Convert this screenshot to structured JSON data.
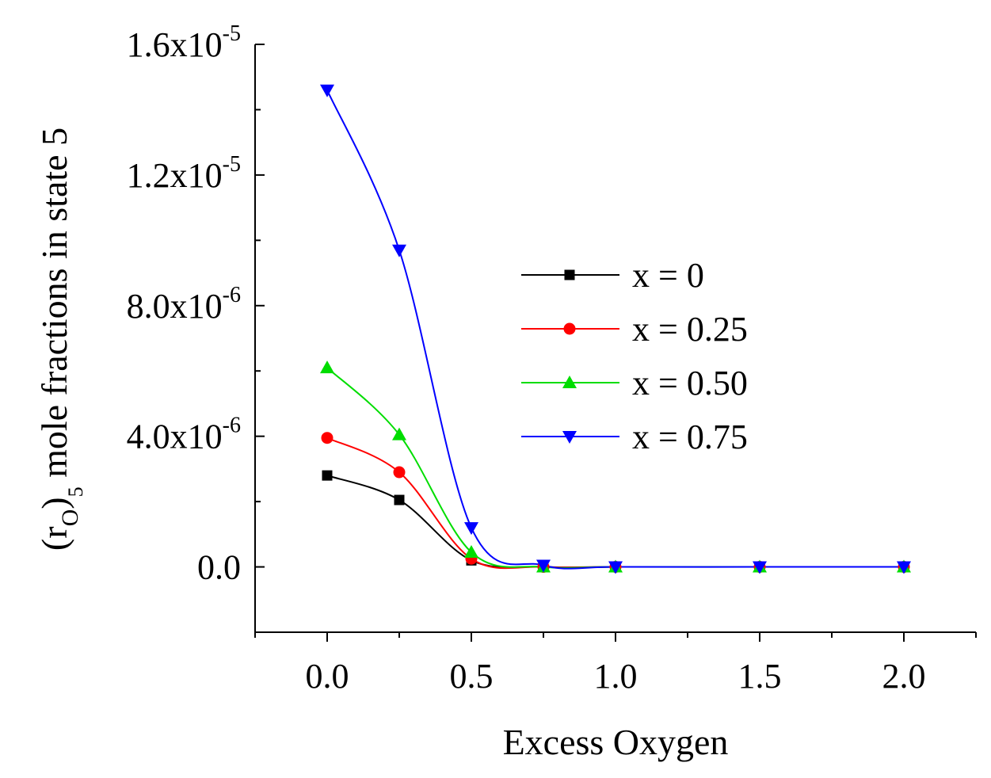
{
  "chart_data": {
    "type": "line",
    "title": "",
    "xlabel": "Excess Oxygen",
    "ylabel": {
      "prefix": "(r",
      "inner_sub": "O",
      "close": ")",
      "outer_sub": "5",
      "suffix": " mole fractions in state 5"
    },
    "xlim": [
      -0.25,
      2.25
    ],
    "ylim": [
      -2e-06,
      1.6e-05
    ],
    "x_ticks": [
      {
        "value": 0.0,
        "label": "0.0"
      },
      {
        "value": 0.5,
        "label": "0.5"
      },
      {
        "value": 1.0,
        "label": "1.0"
      },
      {
        "value": 1.5,
        "label": "1.5"
      },
      {
        "value": 2.0,
        "label": "2.0"
      }
    ],
    "x_minor_ticks": [
      -0.25,
      0.25,
      0.75,
      1.25,
      1.75,
      2.25
    ],
    "y_ticks": [
      {
        "value": 0.0,
        "mantissa": "0.0",
        "exponent": ""
      },
      {
        "value": 4e-06,
        "mantissa": "4.0x10",
        "exponent": "-6"
      },
      {
        "value": 8e-06,
        "mantissa": "8.0x10",
        "exponent": "-6"
      },
      {
        "value": 1.2e-05,
        "mantissa": "1.2x10",
        "exponent": "-5"
      },
      {
        "value": 1.6e-05,
        "mantissa": "1.6x10",
        "exponent": "-5"
      }
    ],
    "y_minor_ticks": [
      -2e-06,
      2e-06,
      6e-06,
      1e-05,
      1.4e-05
    ],
    "legend_position": "center-right",
    "series": [
      {
        "name": "x = 0",
        "color": "#000000",
        "marker": "square",
        "x": [
          0.0,
          0.25,
          0.5,
          0.75,
          1.0,
          1.5,
          2.0
        ],
        "y": [
          2.8e-06,
          2.05e-06,
          2e-07,
          0.0,
          0.0,
          0.0,
          0.0
        ]
      },
      {
        "name": "x = 0.25",
        "color": "#ff0000",
        "marker": "circle",
        "x": [
          0.0,
          0.25,
          0.5,
          0.75,
          1.0,
          1.5,
          2.0
        ],
        "y": [
          3.95e-06,
          2.9e-06,
          2.5e-07,
          0.0,
          0.0,
          0.0,
          0.0
        ]
      },
      {
        "name": "x = 0.50",
        "color": "#00dd00",
        "marker": "triangle-up",
        "x": [
          0.0,
          0.25,
          0.5,
          0.75,
          1.0,
          1.5,
          2.0
        ],
        "y": [
          6.1e-06,
          4.05e-06,
          4.5e-07,
          0.0,
          0.0,
          0.0,
          0.0
        ]
      },
      {
        "name": "x = 0.75",
        "color": "#0000ff",
        "marker": "triangle-down",
        "x": [
          0.0,
          0.25,
          0.5,
          0.75,
          1.0,
          1.5,
          2.0
        ],
        "y": [
          1.46e-05,
          9.7e-06,
          1.2e-06,
          5e-08,
          0.0,
          0.0,
          0.0
        ]
      }
    ]
  }
}
